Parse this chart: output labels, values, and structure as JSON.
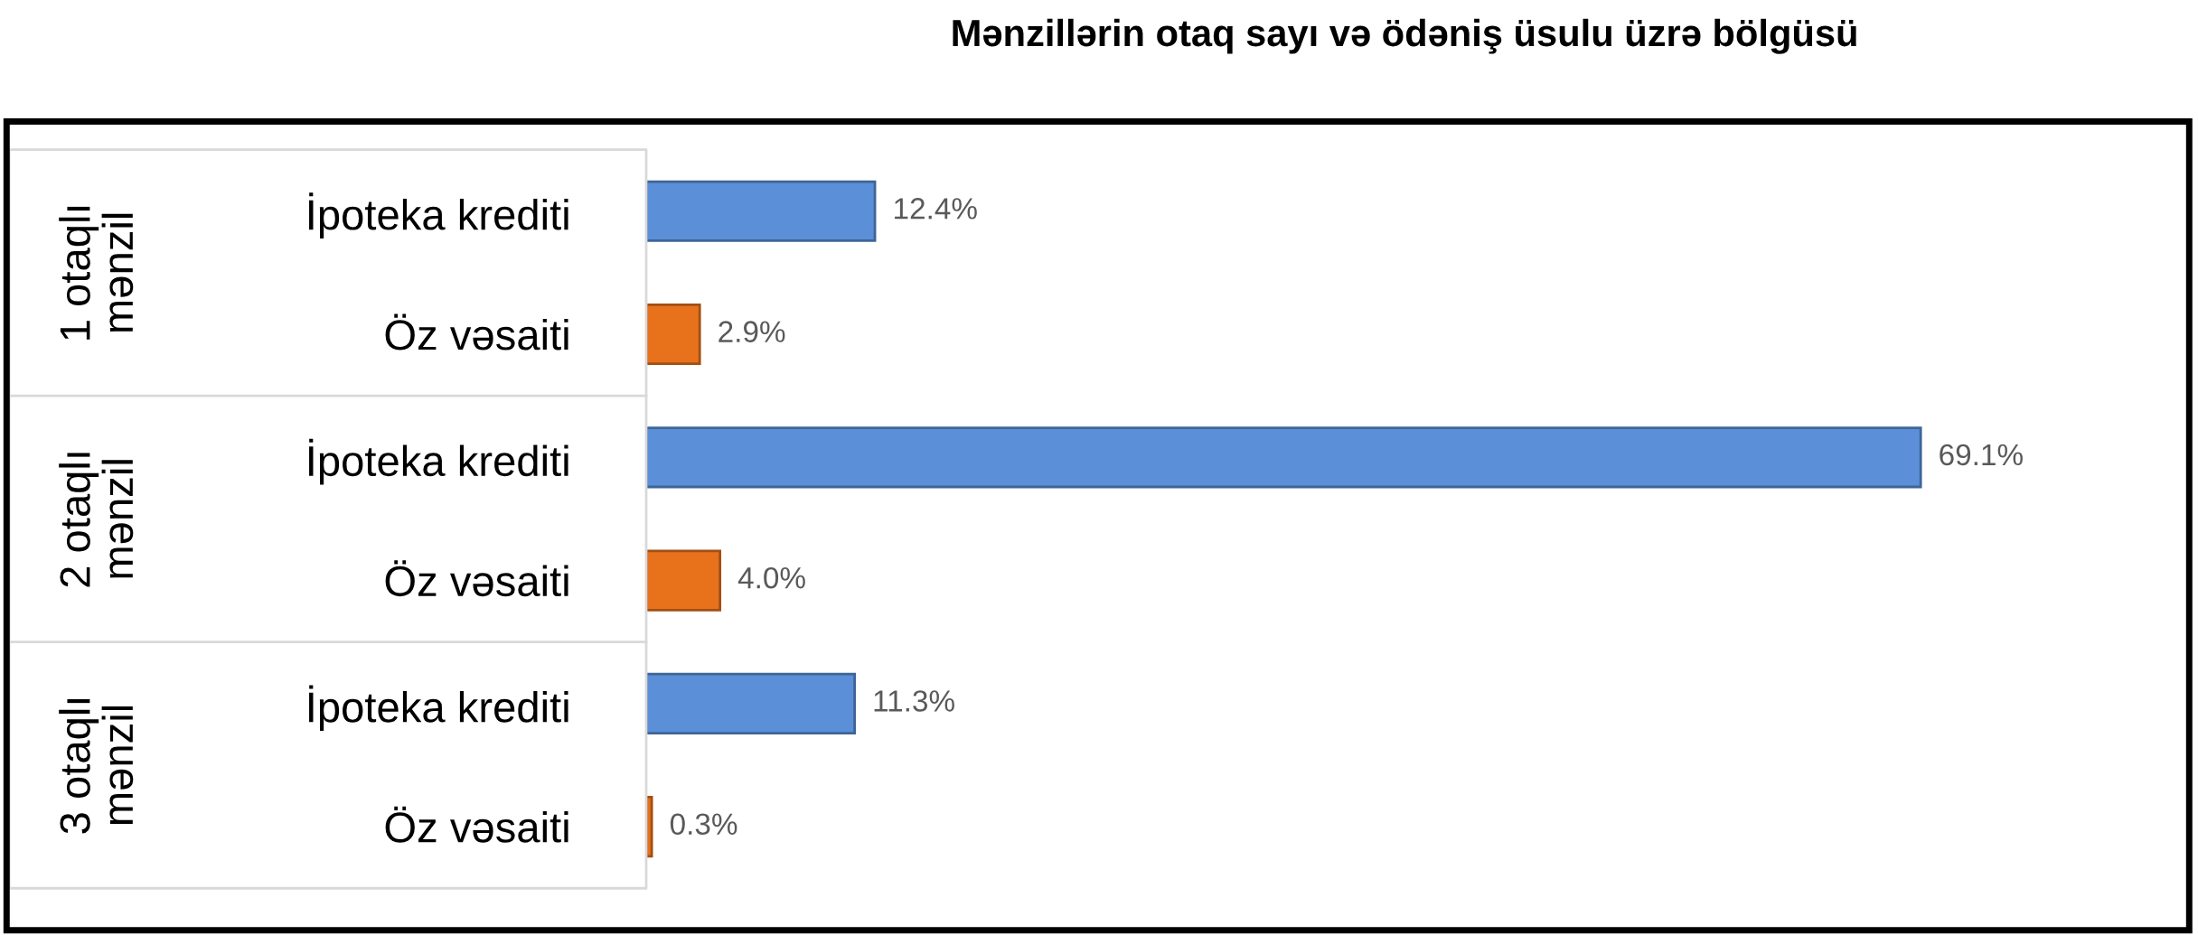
{
  "chart_data": {
    "type": "bar",
    "orientation": "horizontal",
    "title": "Mənzillərin otaq sayı və ödəniş üsulu üzrə bölgüsü",
    "categories": [
      "İpoteka krediti",
      "Öz vəsaiti",
      "İpoteka krediti",
      "Öz vəsaiti",
      "İpoteka krediti",
      "Öz vəsaiti"
    ],
    "values": [
      12.4,
      2.9,
      69.1,
      4.0,
      11.3,
      0.3
    ],
    "colors": [
      "#5b8fd8",
      "#e8711c",
      "#5b8fd8",
      "#e8711c",
      "#5b8fd8",
      "#e8711c"
    ],
    "value_labels": [
      "12.4%",
      "2.9%",
      "69.1%",
      "4.0%",
      "11.3%",
      "0.3%"
    ],
    "annotations": [
      "1 otaqlı mənzil",
      "2 otaqlı mənzil",
      "3 otaqlı mənzil"
    ],
    "grid": false,
    "legend": false
  }
}
